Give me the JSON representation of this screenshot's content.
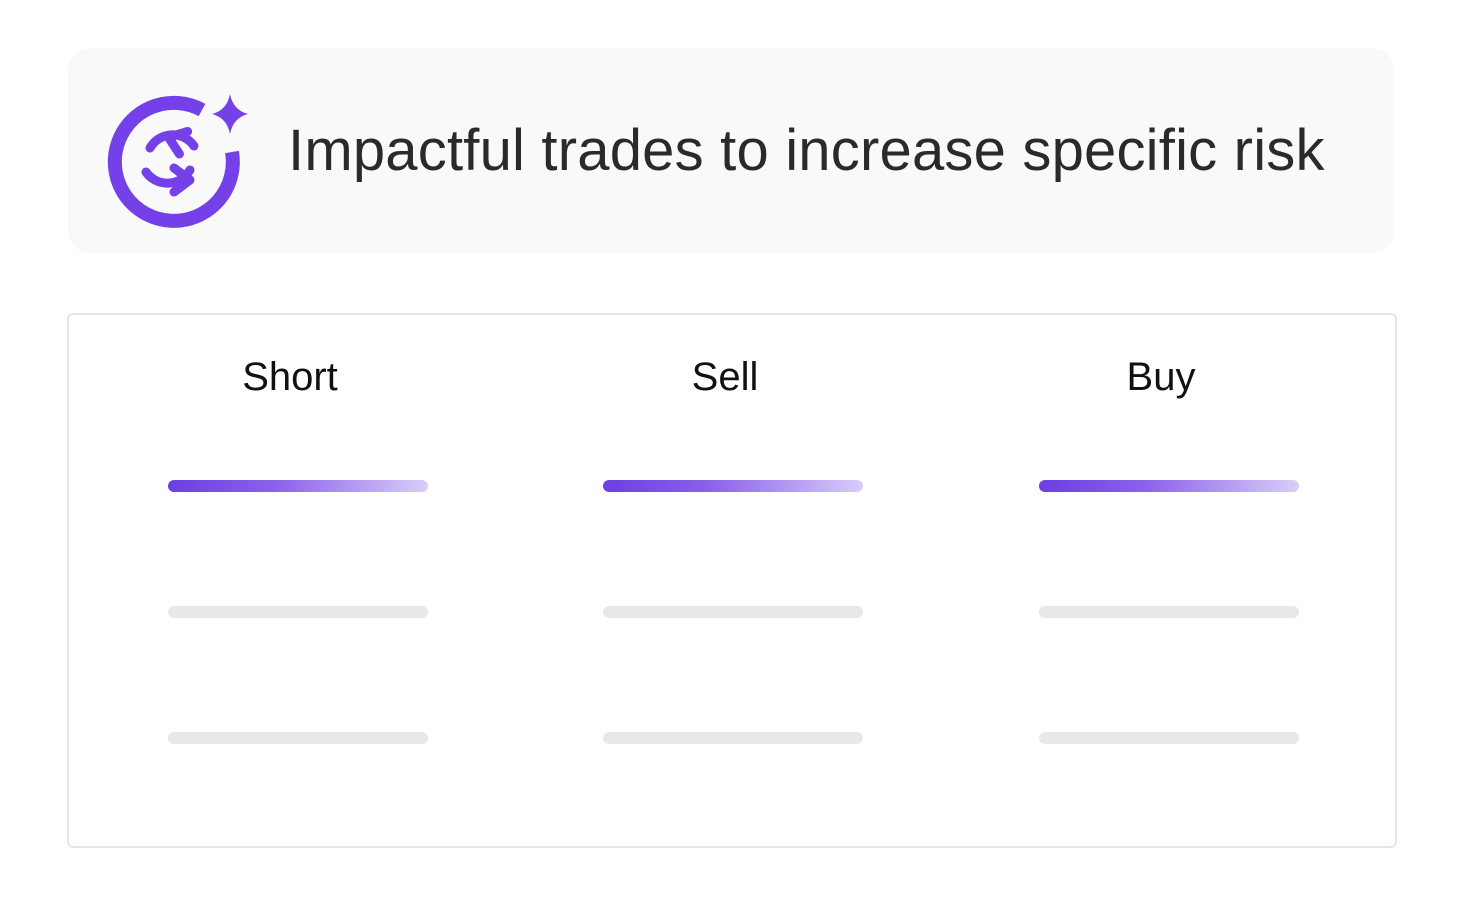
{
  "header": {
    "title": "Impactful trades to increase specific risk",
    "icon": "sparkle-sync-icon",
    "accent_color": "#7441e8"
  },
  "columns": [
    {
      "label": "Short"
    },
    {
      "label": "Sell"
    },
    {
      "label": "Buy"
    }
  ],
  "colors": {
    "active_bar_start": "#6d3ee2",
    "active_bar_end": "#d9cdfa",
    "placeholder_bar": "#e8e8e8"
  }
}
